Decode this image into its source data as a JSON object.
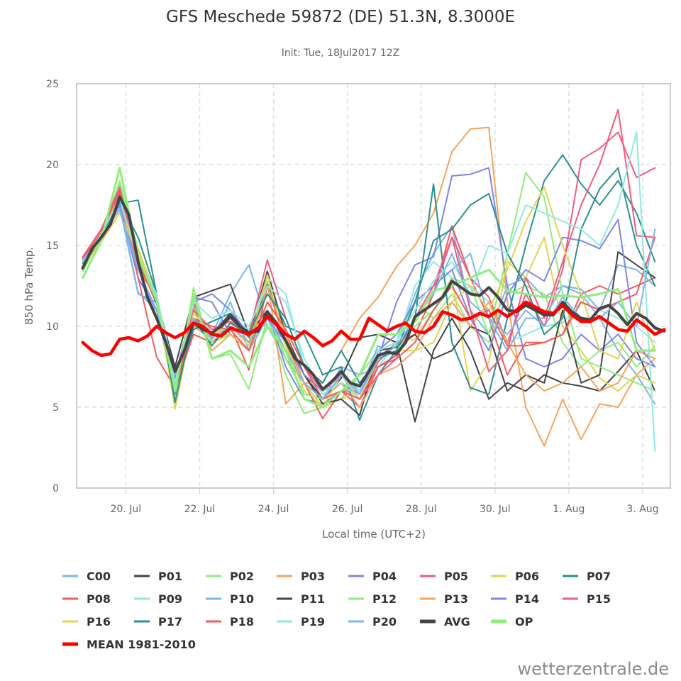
{
  "chart_data": {
    "type": "line",
    "title": "GFS Meschede 59872 (DE) 51.3N, 8.3000E",
    "subtitle": "Init: Tue, 18Jul2017 12Z",
    "xlabel": "Local time (UTC+2)",
    "ylabel": "850 hPa Temp.",
    "ylim": [
      0,
      25
    ],
    "yticks": [
      0,
      5,
      10,
      15,
      20,
      25
    ],
    "x_unit": "hours since 18 Jul 20:00 local",
    "xlim": [
      -4,
      382
    ],
    "xticks": [
      {
        "hour": 28,
        "label": "20. Jul"
      },
      {
        "hour": 76,
        "label": "22. Jul"
      },
      {
        "hour": 124,
        "label": "24. Jul"
      },
      {
        "hour": 172,
        "label": "26. Jul"
      },
      {
        "hour": 220,
        "label": "28. Jul"
      },
      {
        "hour": 268,
        "label": "30. Jul"
      },
      {
        "hour": 316,
        "label": "1. Aug"
      },
      {
        "hour": 364,
        "label": "3. Aug"
      }
    ],
    "grid": true,
    "legend_position": "bottom",
    "watermark": "wetterzentrale.de",
    "series": [
      {
        "name": "C00",
        "color": "#7cb5ec",
        "width": 2,
        "step_hours": 12,
        "values": [
          14.0,
          15.8,
          17.5,
          12.1,
          11.0,
          6.5,
          11.2,
          9.5,
          12.0,
          13.8,
          10.0,
          8.0,
          6.5,
          5.5,
          7.5,
          7.0,
          7.5,
          9.0,
          12.0,
          14.5,
          16.2,
          11.0,
          9.5,
          12.5,
          13.0,
          11.8,
          12.5,
          12.0,
          10.5,
          8.5,
          7.0,
          5.2
        ]
      },
      {
        "name": "P01",
        "color": "#434348",
        "width": 2,
        "step_hours": 12,
        "values": [
          13.5,
          15.5,
          17.8,
          14.2,
          11.6,
          7.5,
          11.8,
          12.2,
          12.6,
          9.5,
          13.4,
          9.5,
          7.0,
          5.5,
          6.8,
          9.3,
          9.5,
          9.0,
          4.1,
          8.5,
          10.5,
          8.5,
          5.5,
          6.5,
          6.0,
          7.0,
          6.5,
          6.3,
          6.0,
          7.2,
          8.5,
          6.0
        ]
      },
      {
        "name": "P02",
        "color": "#90ed7d",
        "width": 2,
        "step_hours": 12,
        "values": [
          13.0,
          15.2,
          18.8,
          14.8,
          11.5,
          5.5,
          12.4,
          8.0,
          8.3,
          6.1,
          10.6,
          7.0,
          4.6,
          5.0,
          5.5,
          7.0,
          8.5,
          9.0,
          11.5,
          10.5,
          12.0,
          10.0,
          9.0,
          12.0,
          12.5,
          12.0,
          9.0,
          7.5,
          8.5,
          9.0,
          7.5,
          8.8
        ]
      },
      {
        "name": "P03",
        "color": "#f7a35c",
        "width": 2,
        "step_hours": 12,
        "values": [
          14.0,
          15.8,
          17.2,
          13.5,
          11.8,
          6.0,
          10.0,
          9.2,
          10.5,
          9.0,
          12.8,
          5.2,
          6.5,
          6.5,
          8.5,
          10.5,
          11.8,
          13.7,
          15.0,
          17.0,
          20.8,
          22.2,
          22.3,
          11.5,
          5.0,
          2.6,
          5.5,
          3.0,
          5.2,
          5.0,
          7.0,
          8.0
        ]
      },
      {
        "name": "P04",
        "color": "#8085e9",
        "width": 2,
        "step_hours": 12,
        "values": [
          14.1,
          15.5,
          17.5,
          13.0,
          11.0,
          5.8,
          11.8,
          11.5,
          9.5,
          8.5,
          10.9,
          7.5,
          5.5,
          5.2,
          6.0,
          6.0,
          8.0,
          11.5,
          13.8,
          14.3,
          19.3,
          19.4,
          19.8,
          12.5,
          8.0,
          7.5,
          8.0,
          9.5,
          8.5,
          9.5,
          8.0,
          7.5
        ]
      },
      {
        "name": "P05",
        "color": "#f15c80",
        "width": 2,
        "step_hours": 12,
        "values": [
          14.3,
          15.8,
          18.2,
          13.5,
          11.0,
          6.2,
          11.5,
          9.0,
          10.0,
          9.5,
          12.5,
          9.0,
          6.5,
          5.5,
          6.0,
          5.0,
          7.5,
          8.2,
          10.5,
          12.0,
          15.5,
          13.0,
          11.8,
          9.0,
          12.0,
          10.0,
          13.5,
          20.3,
          21.0,
          22.0,
          19.2,
          19.8
        ]
      },
      {
        "name": "P06",
        "color": "#e4d354",
        "width": 2,
        "step_hours": 12,
        "values": [
          13.8,
          15.5,
          17.2,
          14.8,
          11.8,
          4.9,
          10.5,
          9.5,
          9.5,
          8.5,
          12.8,
          8.8,
          6.0,
          5.0,
          5.5,
          6.0,
          8.0,
          9.0,
          9.2,
          11.0,
          13.0,
          6.0,
          7.8,
          14.0,
          13.0,
          15.5,
          10.0,
          8.5,
          6.8,
          6.0,
          7.0,
          6.5
        ]
      },
      {
        "name": "P07",
        "color": "#2b908f",
        "width": 2,
        "step_hours": 12,
        "values": [
          13.6,
          15.3,
          17.6,
          17.8,
          12.0,
          6.0,
          9.8,
          10.3,
          10.8,
          9.3,
          12.6,
          10.0,
          9.5,
          7.0,
          7.5,
          4.2,
          7.0,
          8.5,
          10.5,
          18.8,
          9.0,
          6.2,
          5.8,
          10.5,
          15.0,
          19.0,
          20.6,
          18.8,
          17.5,
          19.0,
          17.0,
          14.0
        ]
      },
      {
        "name": "P08",
        "color": "#f45b5b",
        "width": 2,
        "step_hours": 12,
        "values": [
          14.3,
          16.0,
          18.5,
          13.0,
          8.1,
          6.2,
          9.5,
          9.0,
          10.0,
          7.3,
          12.5,
          9.0,
          6.5,
          4.3,
          6.0,
          5.5,
          7.8,
          9.0,
          9.5,
          12.0,
          16.2,
          13.0,
          10.5,
          7.0,
          9.0,
          9.0,
          9.5,
          12.0,
          12.5,
          12.0,
          12.5,
          13.0
        ]
      },
      {
        "name": "P09",
        "color": "#91e8e1",
        "width": 2,
        "step_hours": 12,
        "values": [
          14.0,
          15.8,
          17.8,
          14.0,
          11.8,
          7.0,
          10.5,
          9.8,
          10.5,
          9.8,
          13.0,
          12.0,
          7.5,
          5.8,
          6.5,
          5.5,
          7.5,
          9.0,
          12.5,
          14.0,
          13.0,
          12.5,
          11.5,
          9.0,
          9.5,
          10.0,
          10.2,
          11.5,
          11.0,
          10.5,
          10.0,
          9.0
        ]
      },
      {
        "name": "P10",
        "color": "#7cb5ec",
        "width": 2,
        "step_hours": 12,
        "values": [
          14.2,
          15.7,
          17.4,
          12.0,
          11.5,
          6.0,
          11.3,
          9.2,
          11.5,
          8.5,
          10.5,
          8.5,
          5.5,
          5.0,
          7.0,
          6.0,
          8.8,
          8.2,
          10.5,
          12.5,
          13.5,
          14.5,
          10.5,
          8.5,
          10.5,
          10.5,
          12.5,
          12.3,
          11.0,
          13.8,
          13.5,
          12.5
        ]
      },
      {
        "name": "P11",
        "color": "#434348",
        "width": 2,
        "step_hours": 12,
        "values": [
          13.7,
          15.4,
          17.9,
          14.1,
          11.4,
          7.0,
          10.5,
          9.5,
          10.8,
          9.5,
          11.0,
          9.0,
          7.0,
          5.2,
          5.5,
          4.5,
          8.5,
          8.7,
          9.5,
          8.0,
          8.5,
          10.0,
          9.5,
          6.0,
          7.0,
          6.5,
          11.0,
          6.5,
          7.0,
          14.6,
          13.8,
          13.0
        ]
      },
      {
        "name": "P12",
        "color": "#90ed7d",
        "width": 2,
        "step_hours": 12,
        "values": [
          13.4,
          15.5,
          19.0,
          14.5,
          11.5,
          6.2,
          11.0,
          9.0,
          9.5,
          8.5,
          11.0,
          8.0,
          5.8,
          5.5,
          6.0,
          6.5,
          8.0,
          8.5,
          10.0,
          11.0,
          13.0,
          12.5,
          9.5,
          14.5,
          19.5,
          18.0,
          12.0,
          8.0,
          7.5,
          7.0,
          6.5,
          6.0
        ]
      },
      {
        "name": "P13",
        "color": "#f7a35c",
        "width": 2,
        "step_hours": 12,
        "values": [
          14.2,
          15.9,
          18.0,
          13.6,
          11.8,
          6.5,
          11.2,
          8.5,
          9.5,
          8.5,
          12.5,
          9.5,
          6.5,
          5.5,
          6.5,
          5.0,
          7.0,
          7.5,
          8.5,
          10.5,
          11.5,
          10.0,
          11.5,
          9.0,
          7.0,
          6.0,
          6.5,
          7.5,
          6.0,
          6.5,
          8.5,
          8.0
        ]
      },
      {
        "name": "P14",
        "color": "#8085e9",
        "width": 2,
        "step_hours": 12,
        "values": [
          14.0,
          15.6,
          17.5,
          13.5,
          11.0,
          6.8,
          11.5,
          12.0,
          11.0,
          9.5,
          10.5,
          9.0,
          7.0,
          6.0,
          6.5,
          5.8,
          8.5,
          9.5,
          11.5,
          12.5,
          13.5,
          10.5,
          8.5,
          12.0,
          13.5,
          12.8,
          15.5,
          15.3,
          14.8,
          16.6,
          9.0,
          7.5
        ]
      },
      {
        "name": "P15",
        "color": "#f15c80",
        "width": 2,
        "step_hours": 12,
        "values": [
          14.3,
          16.0,
          18.6,
          13.8,
          11.6,
          6.5,
          11.0,
          9.8,
          10.3,
          9.5,
          14.1,
          10.5,
          7.5,
          6.0,
          7.0,
          5.5,
          7.0,
          8.0,
          10.5,
          12.5,
          15.5,
          11.0,
          7.2,
          8.5,
          13.0,
          10.5,
          14.0,
          17.5,
          20.0,
          23.4,
          15.6,
          15.5
        ]
      },
      {
        "name": "P16",
        "color": "#e4d354",
        "width": 2,
        "step_hours": 12,
        "values": [
          13.7,
          15.2,
          17.0,
          14.5,
          11.8,
          5.0,
          10.8,
          9.5,
          10.0,
          8.8,
          13.2,
          8.8,
          6.5,
          5.0,
          7.0,
          5.5,
          8.0,
          8.5,
          8.5,
          9.0,
          11.5,
          12.5,
          11.0,
          13.5,
          16.5,
          18.6,
          15.0,
          12.0,
          8.5,
          8.0,
          11.5,
          8.5
        ]
      },
      {
        "name": "P17",
        "color": "#2b908f",
        "width": 2,
        "step_hours": 12,
        "values": [
          13.9,
          15.6,
          17.7,
          15.5,
          12.0,
          5.3,
          10.5,
          8.8,
          10.2,
          9.5,
          12.0,
          10.5,
          7.5,
          6.5,
          8.5,
          6.5,
          8.0,
          8.5,
          11.5,
          15.3,
          16.0,
          17.5,
          18.2,
          14.5,
          12.5,
          9.5,
          10.5,
          16.0,
          18.5,
          19.8,
          15.0,
          12.5
        ]
      },
      {
        "name": "P18",
        "color": "#f45b5b",
        "width": 2,
        "step_hours": 12,
        "values": [
          14.2,
          15.8,
          18.4,
          14.0,
          11.5,
          6.0,
          10.5,
          10.0,
          9.8,
          8.5,
          11.5,
          9.8,
          7.5,
          5.5,
          6.0,
          5.5,
          7.5,
          8.0,
          9.0,
          11.0,
          12.5,
          10.5,
          11.0,
          8.8,
          8.8,
          9.0,
          9.5,
          11.5,
          11.0,
          11.5,
          12.0,
          15.5
        ]
      },
      {
        "name": "P19",
        "color": "#91e8e1",
        "width": 2,
        "step_hours": 12,
        "values": [
          14.0,
          15.7,
          17.9,
          14.2,
          12.0,
          6.5,
          11.5,
          10.5,
          11.0,
          10.0,
          12.5,
          11.5,
          8.0,
          6.0,
          6.5,
          6.0,
          8.5,
          9.0,
          11.0,
          12.8,
          14.0,
          12.0,
          15.0,
          14.5,
          17.5,
          17.0,
          16.5,
          16.0,
          15.0,
          17.5,
          22.0,
          2.3
        ]
      },
      {
        "name": "P20",
        "color": "#7cb5ec",
        "width": 2,
        "step_hours": 12,
        "values": [
          14.1,
          15.6,
          17.2,
          13.5,
          11.0,
          7.0,
          10.5,
          9.3,
          10.0,
          9.0,
          10.8,
          8.5,
          6.5,
          5.5,
          7.0,
          5.8,
          8.0,
          8.8,
          10.5,
          12.0,
          14.5,
          11.5,
          10.5,
          9.5,
          11.0,
          10.0,
          11.8,
          10.5,
          10.5,
          11.5,
          10.0,
          16.0
        ]
      },
      {
        "name": "AVG",
        "color": "#434348",
        "width": 4,
        "step_hours": 6,
        "values": [
          13.6,
          14.8,
          15.5,
          16.3,
          18.0,
          16.9,
          14.0,
          11.8,
          10.5,
          9.0,
          7.2,
          8.5,
          10.2,
          9.8,
          9.6,
          10.0,
          10.6,
          10.0,
          9.6,
          9.7,
          10.9,
          10.2,
          9.1,
          8.0,
          7.6,
          7.0,
          6.1,
          6.6,
          7.2,
          6.5,
          6.3,
          7.2,
          8.2,
          8.4,
          8.3,
          9.0,
          10.6,
          11.0,
          11.4,
          11.8,
          12.8,
          12.4,
          12.0,
          11.9,
          12.4,
          11.8,
          11.0,
          10.9,
          11.3,
          11.0,
          10.7,
          10.7,
          11.5,
          10.9,
          10.5,
          10.4,
          11.1,
          11.3,
          10.8,
          10.1,
          10.8,
          10.5,
          9.9,
          9.7
        ]
      },
      {
        "name": "OP",
        "color": "#90ed7d",
        "width": 3,
        "step_hours": 12,
        "values": [
          13.0,
          15.3,
          19.8,
          14.3,
          11.6,
          6.0,
          12.0,
          8.0,
          8.5,
          7.5,
          10.0,
          8.5,
          5.5,
          5.0,
          6.0,
          7.0,
          9.5,
          9.5,
          10.3,
          12.2,
          12.5,
          13.0,
          13.5,
          12.2,
          12.0,
          11.8,
          11.9,
          11.8,
          12.0,
          12.3,
          8.5,
          8.5
        ]
      },
      {
        "name": "MEAN 1981-2010",
        "color": "#ff0000",
        "width": 4.5,
        "step_hours": 6,
        "values": [
          9.0,
          8.5,
          8.2,
          8.3,
          9.2,
          9.3,
          9.1,
          9.4,
          10.0,
          9.6,
          9.3,
          9.6,
          10.2,
          10.0,
          9.5,
          9.4,
          9.9,
          9.7,
          9.5,
          9.9,
          10.6,
          10.1,
          9.5,
          9.2,
          9.7,
          9.3,
          8.8,
          9.1,
          9.7,
          9.2,
          9.2,
          10.5,
          10.1,
          9.7,
          10.0,
          10.2,
          9.7,
          9.6,
          10.0,
          10.9,
          10.7,
          10.4,
          10.5,
          10.8,
          10.6,
          11.0,
          10.6,
          11.0,
          11.5,
          11.2,
          10.9,
          10.8,
          11.3,
          10.7,
          10.3,
          10.3,
          10.6,
          10.2,
          9.8,
          9.7,
          10.4,
          10.0,
          9.5,
          9.8
        ]
      }
    ]
  }
}
